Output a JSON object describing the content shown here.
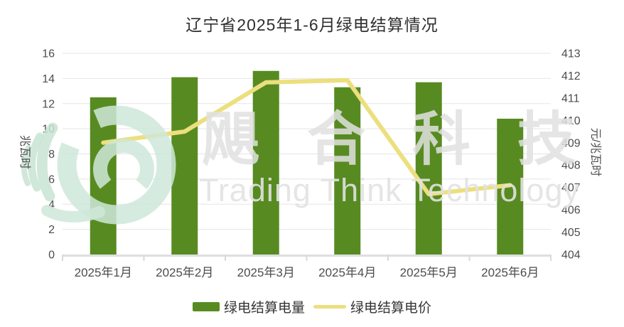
{
  "title": "辽宁省2025年1-6月绿电结算情况",
  "watermark": {
    "cn": "飓合科技",
    "en": "Trading Think Technology"
  },
  "colors": {
    "bar": "#578b21",
    "line": "#ecdf7e",
    "gridline": "#e5e5e5",
    "axis_line": "#dfdfdf",
    "tick": "#d9d9d9",
    "axis_text": "#4d4d4d",
    "title_text": "#2f2f2f",
    "legend_text": "#333333",
    "watermark_gray": "#e0e0e0",
    "watermark_green": "#cfe7d9"
  },
  "chart_data": {
    "type": "bar+line combo",
    "title": "辽宁省2025年1-6月绿电结算情况",
    "categories": [
      "2025年1月",
      "2025年2月",
      "2025年3月",
      "2025年4月",
      "2025年5月",
      "2025年6月"
    ],
    "series": [
      {
        "name": "绿电结算电量",
        "type": "bar",
        "y_axis": "left",
        "color": "#578b21",
        "values": [
          12.5,
          14.1,
          14.6,
          13.3,
          13.7,
          10.8
        ]
      },
      {
        "name": "绿电结算电价",
        "type": "line",
        "y_axis": "right",
        "color": "#ecdf7e",
        "values": [
          409.0,
          409.5,
          411.7,
          411.8,
          406.7,
          407.1
        ]
      }
    ],
    "left_axis": {
      "name": "兆瓦时",
      "min": 0,
      "max": 16,
      "step": 2,
      "ticks": [
        "0",
        "2",
        "4",
        "6",
        "8",
        "10",
        "12",
        "14",
        "16"
      ]
    },
    "right_axis": {
      "name": "元/兆瓦时",
      "min": 404,
      "max": 413,
      "step": 1,
      "ticks": [
        "404",
        "405",
        "406",
        "407",
        "408",
        "409",
        "410",
        "411",
        "412",
        "413"
      ]
    },
    "legend": [
      "绿电结算电量",
      "绿电结算电价"
    ],
    "legend_position": "bottom",
    "grid": true
  }
}
